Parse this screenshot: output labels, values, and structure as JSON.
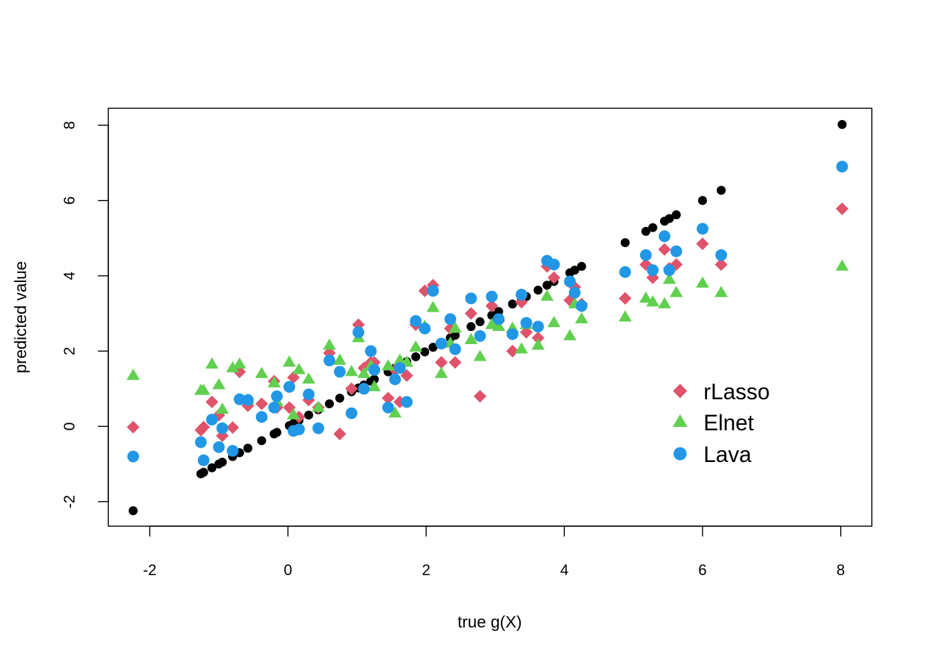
{
  "chart_data": {
    "type": "scatter",
    "title": "",
    "xlabel": "true g(X)",
    "ylabel": "predicted value",
    "xlim": [
      -2.6,
      8.45
    ],
    "ylim": [
      -2.65,
      8.45
    ],
    "x_ticks": [
      -2,
      0,
      2,
      4,
      6,
      8
    ],
    "y_ticks": [
      -2,
      0,
      2,
      4,
      6,
      8
    ],
    "x_tick_labels": [
      "-2",
      "0",
      "2",
      "4",
      "6",
      "8"
    ],
    "y_tick_labels": [
      "-2",
      "0",
      "2",
      "4",
      "6",
      "8"
    ],
    "grid": false,
    "legend": {
      "position": "bottom-right",
      "entries": [
        "rLasso",
        "Elnet",
        "Lava"
      ]
    },
    "colors": {
      "true": "#000000",
      "rLasso": "#DF536B",
      "Elnet": "#61D04F",
      "Lava": "#2297E6",
      "axis": "#000000",
      "background": "#ffffff"
    },
    "x": [
      -2.24,
      -1.26,
      -1.22,
      -1.1,
      -1.0,
      -0.95,
      -0.8,
      -0.7,
      -0.58,
      -0.38,
      -0.2,
      -0.16,
      0.02,
      0.08,
      0.16,
      0.3,
      0.44,
      0.6,
      0.75,
      0.92,
      1.02,
      1.1,
      1.2,
      1.25,
      1.45,
      1.55,
      1.62,
      1.72,
      1.85,
      1.98,
      2.1,
      2.22,
      2.35,
      2.42,
      2.65,
      2.78,
      2.95,
      3.05,
      3.25,
      3.38,
      3.45,
      3.62,
      3.75,
      3.85,
      4.08,
      4.15,
      4.25,
      4.88,
      5.18,
      5.28,
      5.45,
      5.52,
      5.62,
      6.0,
      6.27,
      8.02
    ],
    "series": [
      {
        "name": "",
        "marker": "circle",
        "y": [
          -2.24,
          -1.26,
          -1.22,
          -1.1,
          -1.0,
          -0.95,
          -0.8,
          -0.7,
          -0.58,
          -0.38,
          -0.2,
          -0.16,
          0.02,
          0.08,
          0.16,
          0.3,
          0.44,
          0.6,
          0.75,
          0.92,
          1.02,
          1.1,
          1.2,
          1.25,
          1.45,
          1.55,
          1.62,
          1.72,
          1.85,
          1.98,
          2.1,
          2.22,
          2.35,
          2.42,
          2.65,
          2.78,
          2.95,
          3.05,
          3.25,
          3.38,
          3.45,
          3.62,
          3.75,
          3.85,
          4.08,
          4.15,
          4.25,
          4.88,
          5.18,
          5.28,
          5.45,
          5.52,
          5.62,
          6.0,
          6.27,
          8.02
        ]
      },
      {
        "name": "rLasso",
        "marker": "diamond",
        "y": [
          -0.02,
          -0.1,
          -0.02,
          0.65,
          0.3,
          -0.25,
          -0.03,
          1.45,
          0.55,
          0.6,
          1.2,
          0.5,
          0.5,
          1.3,
          0.25,
          0.7,
          0.5,
          1.95,
          -0.2,
          1.0,
          2.7,
          1.55,
          1.7,
          1.7,
          0.75,
          1.5,
          0.65,
          1.35,
          2.7,
          3.6,
          3.75,
          1.7,
          2.6,
          1.7,
          3.0,
          0.8,
          3.2,
          2.8,
          2.0,
          3.3,
          2.5,
          2.35,
          4.25,
          3.95,
          3.35,
          3.7,
          3.25,
          3.4,
          4.3,
          3.95,
          4.7,
          4.2,
          4.3,
          4.85,
          4.3,
          5.78
        ]
      },
      {
        "name": "Elnet",
        "marker": "triangle",
        "y": [
          1.35,
          0.95,
          0.95,
          1.65,
          1.1,
          0.45,
          1.55,
          1.65,
          0.7,
          1.4,
          1.15,
          0.65,
          1.7,
          0.3,
          1.5,
          1.25,
          0.5,
          2.15,
          1.75,
          1.45,
          2.35,
          1.4,
          1.6,
          1.05,
          1.6,
          0.35,
          1.75,
          1.7,
          2.1,
          2.65,
          3.15,
          1.4,
          2.2,
          2.6,
          2.3,
          1.85,
          2.7,
          2.65,
          2.6,
          2.05,
          2.7,
          2.15,
          3.45,
          2.75,
          2.4,
          3.25,
          2.85,
          2.9,
          3.4,
          3.3,
          3.25,
          3.9,
          3.55,
          3.8,
          3.55,
          4.25
        ]
      },
      {
        "name": "Lava",
        "marker": "circle",
        "y": [
          -0.8,
          -0.42,
          -0.9,
          0.18,
          -0.55,
          -0.05,
          -0.65,
          0.72,
          0.7,
          0.25,
          0.5,
          0.8,
          1.05,
          -0.12,
          -0.08,
          0.85,
          -0.05,
          1.75,
          1.45,
          0.35,
          2.5,
          1.0,
          2.0,
          1.5,
          0.5,
          1.25,
          1.55,
          0.65,
          2.8,
          2.6,
          3.6,
          2.2,
          2.85,
          2.05,
          3.4,
          2.4,
          3.45,
          2.85,
          2.45,
          3.5,
          2.75,
          2.65,
          4.4,
          4.3,
          3.85,
          3.55,
          3.2,
          4.1,
          4.55,
          4.15,
          5.05,
          4.15,
          4.65,
          5.25,
          4.55,
          6.9
        ]
      }
    ]
  }
}
